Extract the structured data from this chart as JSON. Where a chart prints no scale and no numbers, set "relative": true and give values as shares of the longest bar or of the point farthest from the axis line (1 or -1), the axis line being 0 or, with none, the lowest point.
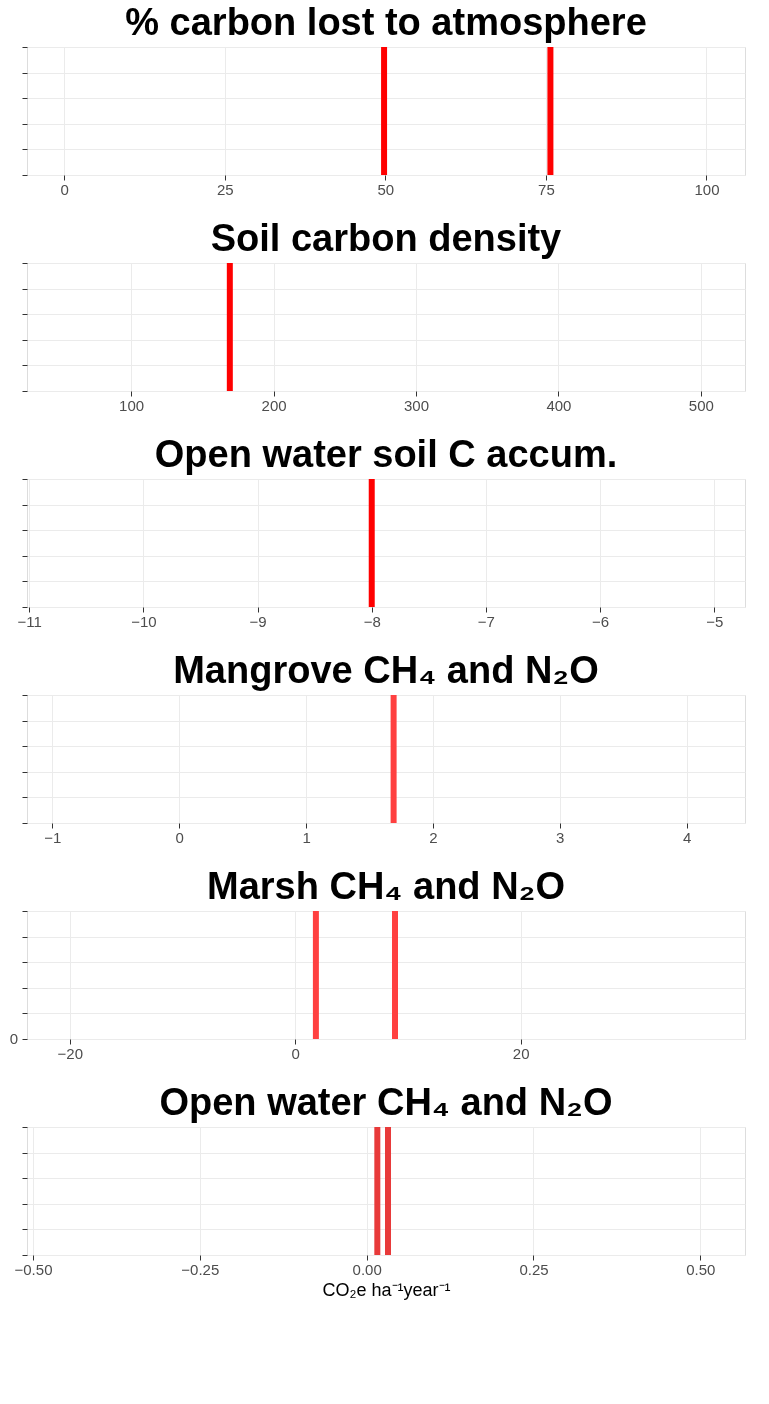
{
  "chart_data": [
    {
      "type": "bar",
      "title": "% carbon lost to atmosphere",
      "relative": true,
      "xlim": [
        -5.8,
        106
      ],
      "xticks": [
        0,
        25,
        50,
        75,
        100
      ],
      "grid": true,
      "series": [
        {
          "color": "#ff0000",
          "x": [
            49.8,
            75.7
          ],
          "values": [
            1,
            1
          ]
        }
      ]
    },
    {
      "type": "bar",
      "title": "Soil carbon density",
      "relative": true,
      "xlim": [
        26.9,
        531
      ],
      "xticks": [
        100,
        200,
        300,
        400,
        500
      ],
      "grid": true,
      "series": [
        {
          "color": "#ff0000",
          "x": [
            169.3
          ],
          "values": [
            1
          ]
        }
      ]
    },
    {
      "type": "bar",
      "title": "Open water soil C accum.",
      "relative": true,
      "xlim": [
        -11.02,
        -4.73
      ],
      "xticks": [
        {
          "value": -11,
          "label": "−11"
        },
        {
          "value": -10,
          "label": "−10"
        },
        {
          "value": -9,
          "label": "−9"
        },
        {
          "value": -8,
          "label": "−8"
        },
        {
          "value": -7,
          "label": "−7"
        },
        {
          "value": -6,
          "label": "−6"
        },
        {
          "value": -5,
          "label": "−5"
        }
      ],
      "grid": true,
      "series": [
        {
          "color": "#ff0000",
          "x": [
            -8.0
          ],
          "values": [
            1
          ]
        }
      ]
    },
    {
      "type": "bar",
      "title": "Mangrove CH₄ and N₂O",
      "relative": true,
      "xlim": [
        -1.2,
        4.46
      ],
      "xticks": [
        {
          "value": -1,
          "label": "−1"
        },
        0,
        1,
        2,
        3,
        4
      ],
      "grid": true,
      "series": [
        {
          "color": "#ff4040",
          "x": [
            1.69
          ],
          "values": [
            1
          ]
        }
      ]
    },
    {
      "type": "bar",
      "title": "Marsh CH₄ and N₂O",
      "relative": true,
      "xlim": [
        -23.8,
        39.9
      ],
      "xticks": [
        {
          "value": -20,
          "label": "−20"
        },
        0,
        20
      ],
      "grid": true,
      "annotations": [
        "0"
      ],
      "series": [
        {
          "color": "#ff4040",
          "x": [
            1.83,
            8.85
          ],
          "values": [
            1,
            1
          ]
        }
      ]
    },
    {
      "type": "bar",
      "title": "Open water CH₄ and N₂O",
      "xlabel": "CO₂e ha⁻¹year⁻¹",
      "relative": true,
      "xlim": [
        -0.509,
        0.567
      ],
      "xticks": [
        {
          "value": -0.5,
          "label": "−0.50"
        },
        {
          "value": -0.25,
          "label": "−0.25"
        },
        {
          "value": 0,
          "label": "0.00"
        },
        {
          "value": 0.25,
          "label": "0.25"
        },
        {
          "value": 0.5,
          "label": "0.50"
        }
      ],
      "grid": true,
      "series": [
        {
          "color": "#e83a3a",
          "x": [
            0.016,
            0.032
          ],
          "values": [
            1,
            1
          ]
        }
      ]
    }
  ]
}
